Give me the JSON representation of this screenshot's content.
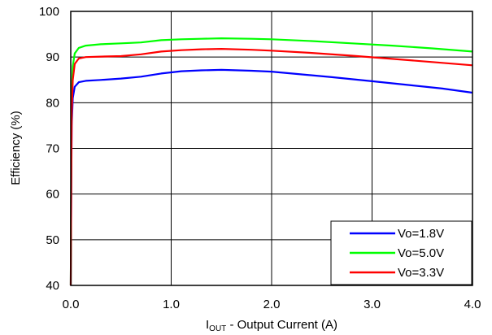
{
  "chart_data": {
    "type": "line",
    "title": "",
    "xlabel": {
      "main": "I",
      "sub": "OUT",
      "rest": " - Output Current (A)"
    },
    "ylabel": "Efficiency (%)",
    "xlim": [
      0,
      4
    ],
    "ylim": [
      40,
      100
    ],
    "x_ticks": [
      0,
      1,
      2,
      3,
      4
    ],
    "x_tick_labels": [
      "0.0",
      "1.0",
      "2.0",
      "3.0",
      "4.0"
    ],
    "y_ticks": [
      40,
      50,
      60,
      70,
      80,
      90,
      100
    ],
    "y_tick_labels": [
      "40",
      "50",
      "60",
      "70",
      "80",
      "90",
      "100"
    ],
    "grid": true,
    "legend_position": "bottom-right",
    "series": [
      {
        "name": "Vo=1.8V",
        "color": "#0000ff",
        "points": [
          [
            0.0,
            40
          ],
          [
            0.005,
            60
          ],
          [
            0.01,
            75
          ],
          [
            0.02,
            81
          ],
          [
            0.04,
            83.5
          ],
          [
            0.08,
            84.5
          ],
          [
            0.15,
            84.8
          ],
          [
            0.3,
            85.0
          ],
          [
            0.5,
            85.3
          ],
          [
            0.7,
            85.7
          ],
          [
            0.9,
            86.4
          ],
          [
            1.1,
            86.9
          ],
          [
            1.3,
            87.1
          ],
          [
            1.5,
            87.2
          ],
          [
            1.8,
            87.0
          ],
          [
            2.0,
            86.8
          ],
          [
            2.3,
            86.2
          ],
          [
            2.6,
            85.6
          ],
          [
            3.0,
            84.7
          ],
          [
            3.4,
            83.8
          ],
          [
            3.7,
            83.1
          ],
          [
            4.0,
            82.2
          ]
        ]
      },
      {
        "name": "Vo=5.0V",
        "color": "#00ff00",
        "points": [
          [
            0.0,
            40
          ],
          [
            0.005,
            65
          ],
          [
            0.01,
            82
          ],
          [
            0.02,
            88
          ],
          [
            0.04,
            90.8
          ],
          [
            0.08,
            92.0
          ],
          [
            0.15,
            92.5
          ],
          [
            0.3,
            92.8
          ],
          [
            0.5,
            93.0
          ],
          [
            0.7,
            93.2
          ],
          [
            0.9,
            93.7
          ],
          [
            1.1,
            93.9
          ],
          [
            1.3,
            94.0
          ],
          [
            1.5,
            94.1
          ],
          [
            1.8,
            94.0
          ],
          [
            2.0,
            93.9
          ],
          [
            2.4,
            93.5
          ],
          [
            2.8,
            93.0
          ],
          [
            3.2,
            92.5
          ],
          [
            3.6,
            91.9
          ],
          [
            4.0,
            91.2
          ]
        ]
      },
      {
        "name": "Vo=3.3V",
        "color": "#ff0000",
        "points": [
          [
            0.0,
            40
          ],
          [
            0.005,
            62
          ],
          [
            0.01,
            78
          ],
          [
            0.02,
            85
          ],
          [
            0.04,
            88.5
          ],
          [
            0.08,
            89.7
          ],
          [
            0.15,
            90.0
          ],
          [
            0.3,
            90.1
          ],
          [
            0.5,
            90.2
          ],
          [
            0.7,
            90.6
          ],
          [
            0.9,
            91.2
          ],
          [
            1.1,
            91.5
          ],
          [
            1.3,
            91.7
          ],
          [
            1.5,
            91.8
          ],
          [
            1.8,
            91.6
          ],
          [
            2.0,
            91.4
          ],
          [
            2.4,
            90.9
          ],
          [
            2.8,
            90.3
          ],
          [
            3.2,
            89.6
          ],
          [
            3.6,
            88.9
          ],
          [
            4.0,
            88.2
          ]
        ]
      }
    ]
  }
}
